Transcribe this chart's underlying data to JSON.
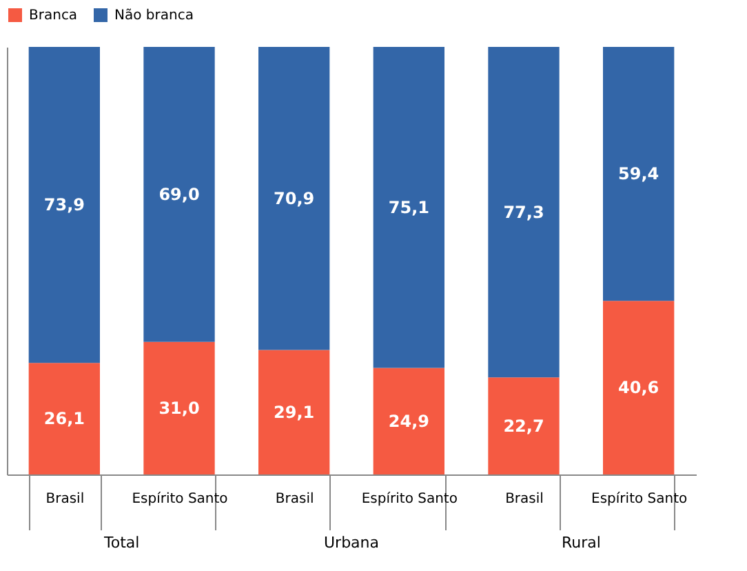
{
  "chart_data": {
    "type": "bar",
    "stacked": true,
    "categories": [
      "Brasil",
      "Espírito Santo",
      "Brasil",
      "Espírito Santo",
      "Brasil",
      "Espírito Santo"
    ],
    "series": [
      {
        "name": "Branca",
        "color": "#f55a42",
        "values": [
          26.1,
          31.0,
          29.1,
          24.9,
          22.7,
          40.6
        ],
        "value_labels": [
          "26,1",
          "31,0",
          "29,1",
          "24,9",
          "22,7",
          "40,6"
        ]
      },
      {
        "name": "Não branca",
        "color": "#3366a8",
        "values": [
          73.9,
          69.0,
          70.9,
          75.1,
          77.3,
          59.4
        ],
        "value_labels": [
          "73,9",
          "69,0",
          "70,9",
          "75,1",
          "77,3",
          "59,4"
        ]
      }
    ],
    "legend": "top",
    "grid": false,
    "annotations": [
      "Total",
      "Urbana",
      "Rural"
    ]
  }
}
